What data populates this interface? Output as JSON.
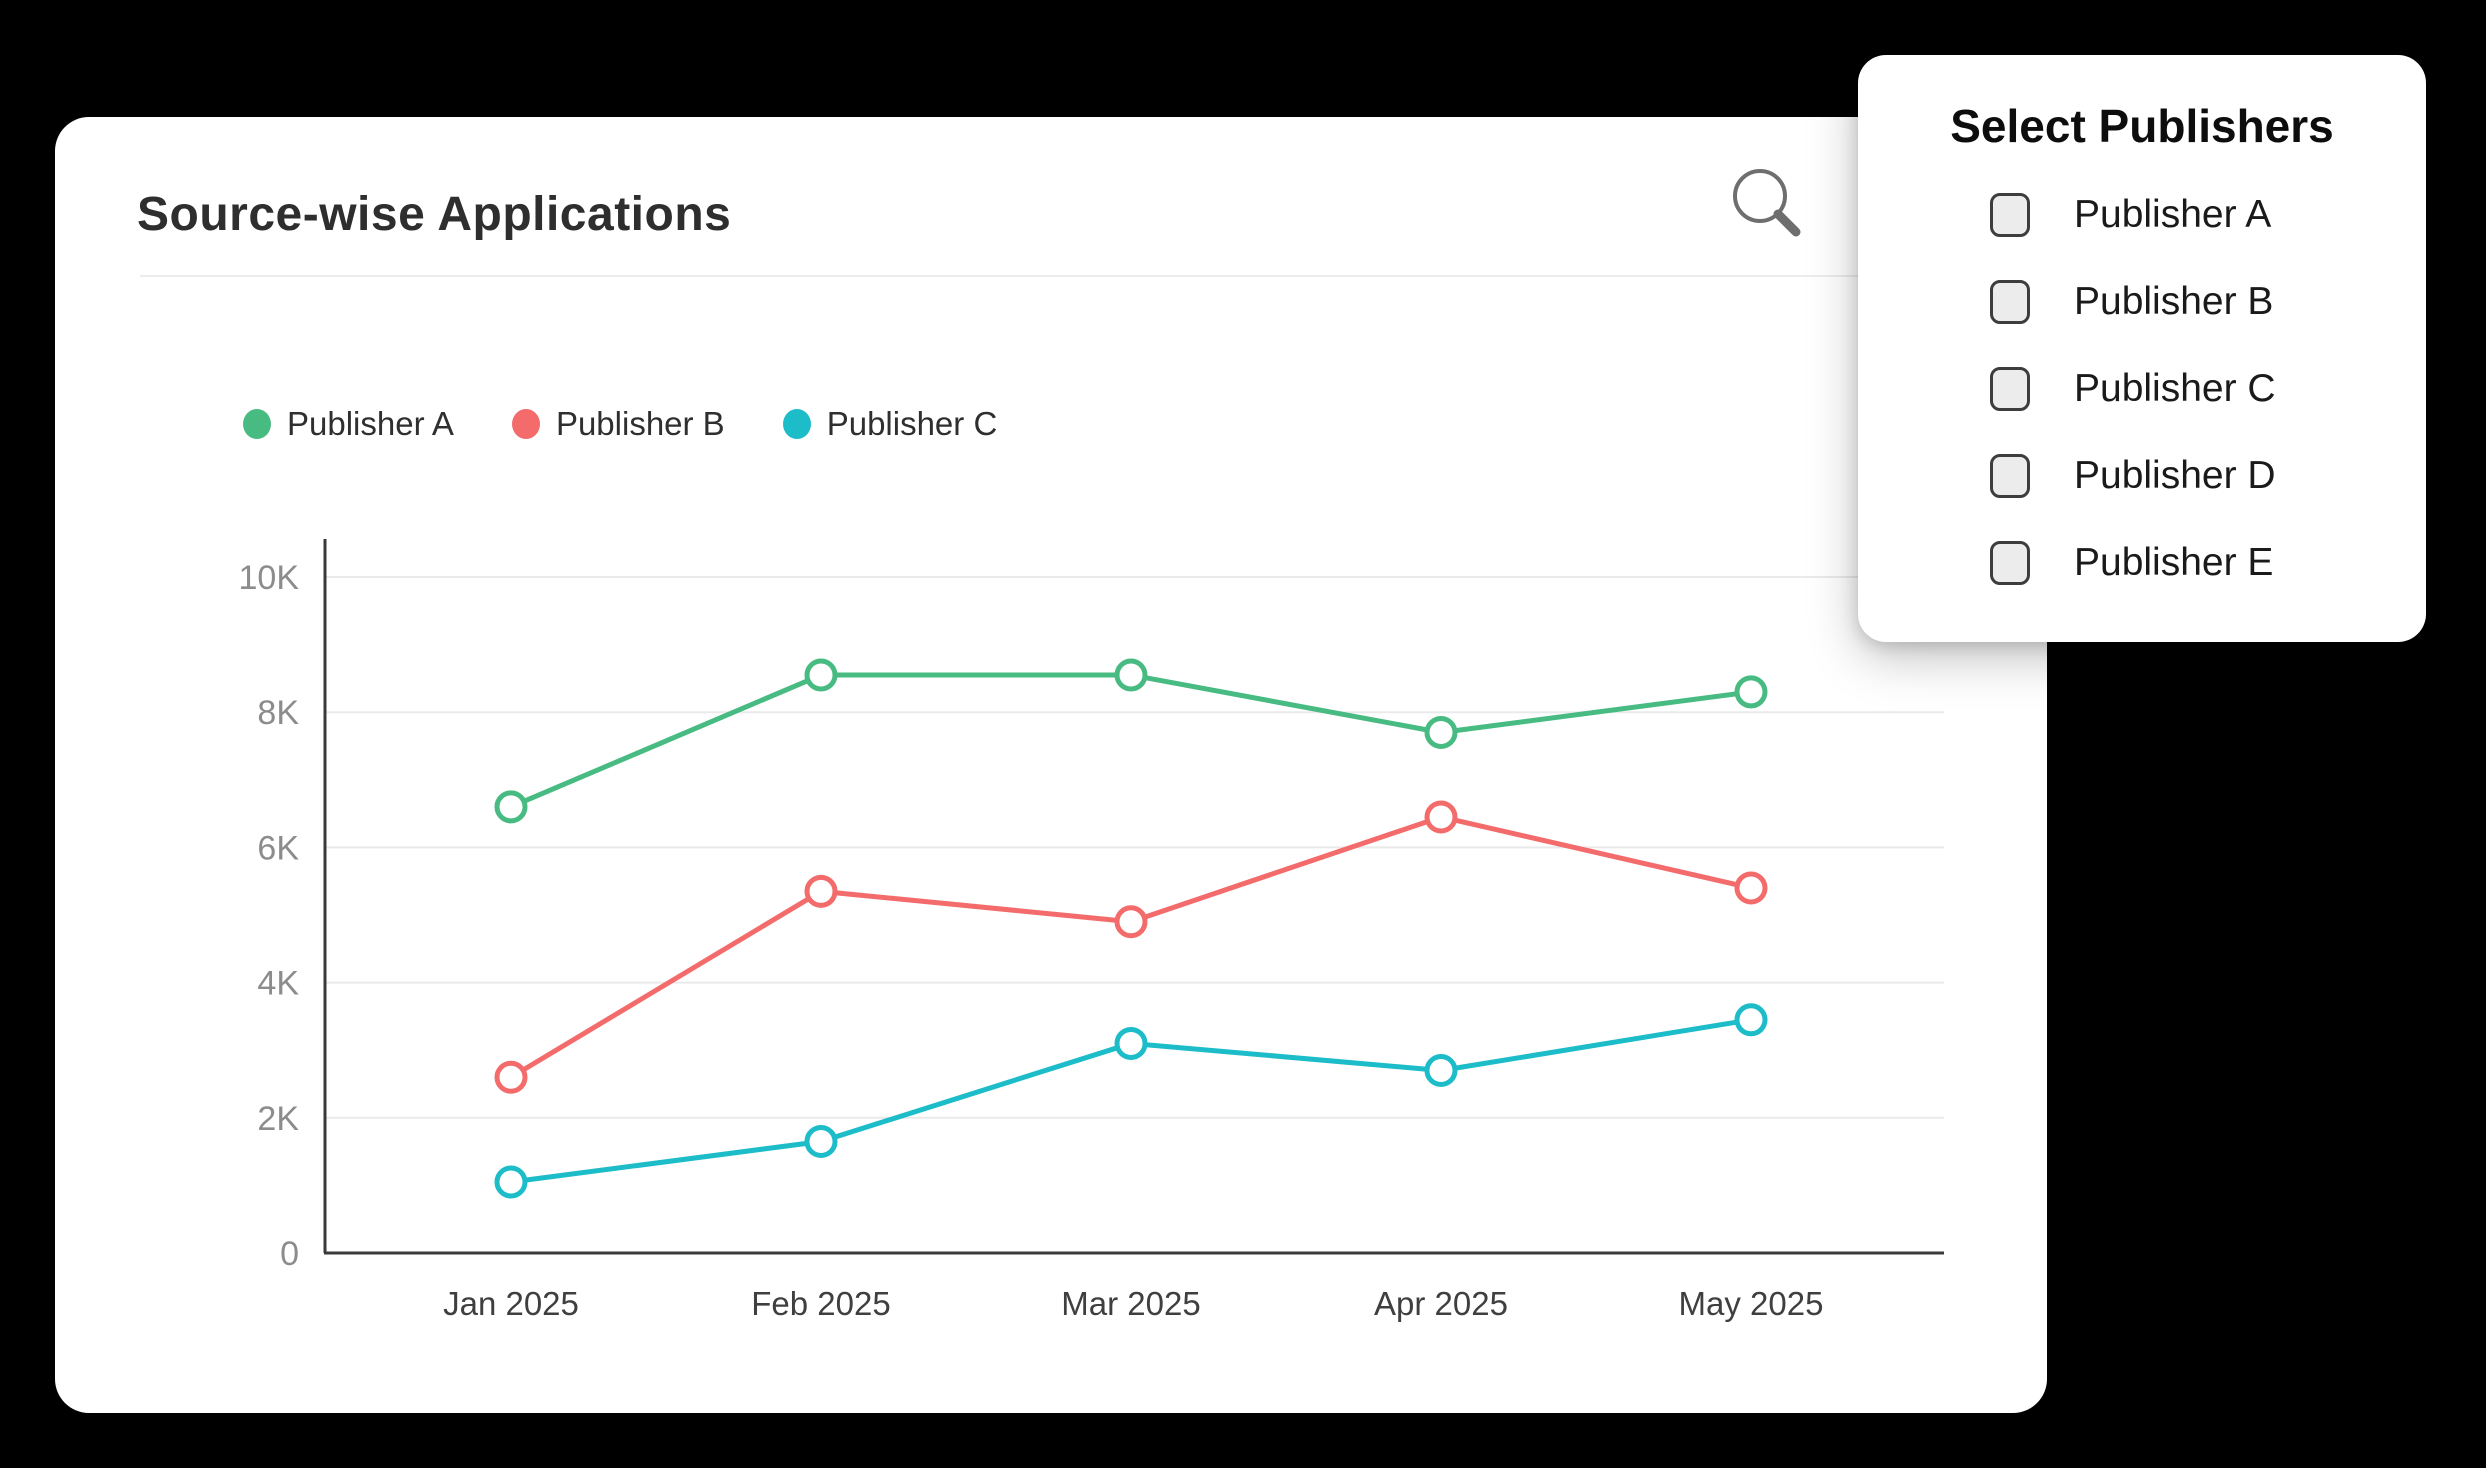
{
  "card": {
    "title": "Source-wise Applications"
  },
  "toolbar": {
    "search_icon": "magnifier"
  },
  "legend": [
    {
      "label": "Publisher A",
      "color": "#47bb82"
    },
    {
      "label": "Publisher B",
      "color": "#f36b6b"
    },
    {
      "label": "Publisher C",
      "color": "#1dbcc9"
    }
  ],
  "publisher_panel": {
    "title": "Select Publishers",
    "options": [
      {
        "label": "Publisher A",
        "checked": false
      },
      {
        "label": "Publisher B",
        "checked": false
      },
      {
        "label": "Publisher C",
        "checked": false
      },
      {
        "label": "Publisher D",
        "checked": false
      },
      {
        "label": "Publisher E",
        "checked": false
      }
    ]
  },
  "chart_data": {
    "type": "line",
    "title": "Source-wise Applications",
    "x": [
      "Jan 2025",
      "Feb 2025",
      "Mar 2025",
      "Apr 2025",
      "May 2025"
    ],
    "series": [
      {
        "name": "Publisher A",
        "color": "#47bb82",
        "values": [
          6600,
          8550,
          8550,
          7700,
          8300
        ]
      },
      {
        "name": "Publisher B",
        "color": "#f36b6b",
        "values": [
          2600,
          5350,
          4900,
          6450,
          5400
        ]
      },
      {
        "name": "Publisher C",
        "color": "#1dbcc9",
        "values": [
          1050,
          1650,
          3100,
          2700,
          3450
        ]
      }
    ],
    "ylim": [
      0,
      10000
    ],
    "yticks": [
      {
        "value": 0,
        "label": "0"
      },
      {
        "value": 2000,
        "label": "2K"
      },
      {
        "value": 4000,
        "label": "4K"
      },
      {
        "value": 6000,
        "label": "6K"
      },
      {
        "value": 8000,
        "label": "8K"
      },
      {
        "value": 10000,
        "label": "10K"
      }
    ],
    "xlabel": "",
    "ylabel": "",
    "grid": true,
    "legend_position": "top-left",
    "marker": "open-circle"
  }
}
